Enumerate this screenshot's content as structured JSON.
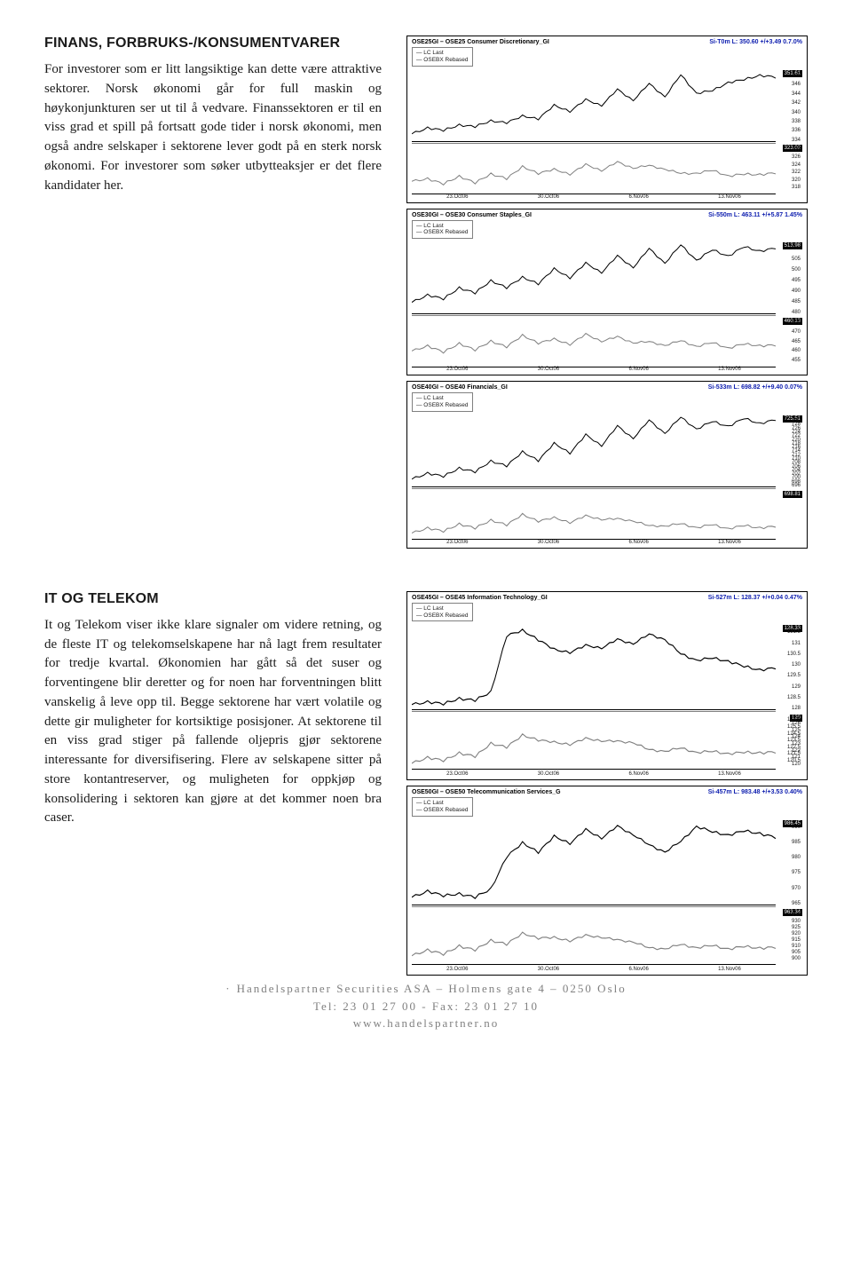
{
  "section1": {
    "heading": "FINANS, FORBRUKS-/KONSUMENTVARER",
    "body": "For investorer som er litt langsiktige kan dette være attraktive sektorer. Norsk økonomi går for full maskin og høykonjunkturen ser ut til å vedvare. Finanssektoren er til en viss grad et spill på fortsatt gode tider i norsk økonomi, men også andre selskaper i sektorene lever godt på en sterk norsk økonomi. For investorer som søker utbytteaksjer er det flere kandidater her."
  },
  "section2": {
    "heading": "IT OG TELEKOM",
    "body": "It og Telekom viser ikke klare signaler om videre retning, og de fleste IT og telekomselskapene har nå lagt frem resultater for tredje kvartal. Økonomien har gått så det suser og forventingene blir deretter og for noen har forventningen blitt vanskelig å leve opp til. Begge sektorene har vært volatile og dette gir muligheter for kortsiktige posisjoner. At sektorene til en viss grad stiger på fallende oljepris gjør sektorene interessante for diversifisering. Flere av selskapene sitter på store kontantreserver, og muligheten for oppkjøp og konsolidering i sektoren kan gjøre at det kommer noen bra caser."
  },
  "charts": {
    "consumer_disc": {
      "title_left": "OSE25GI – OSE25 Consumer Discretionary_GI",
      "title_right": "Si-T0m L: 350.60 +/+3.49 0.7.0%",
      "legend": [
        "LC Last",
        "OSEBX Rebased"
      ],
      "upper_badge": "351.61",
      "line_color_upper": "#000000",
      "y_ticks_upper": [
        "348",
        "346",
        "344",
        "342",
        "340",
        "338",
        "336",
        "334"
      ],
      "lower_badge": "323.02",
      "line_color_lower": "#808080",
      "y_ticks_lower": [
        "328",
        "326",
        "324",
        "322",
        "320",
        "318"
      ],
      "x_ticks": [
        "23.Oct06",
        "30.Oct06",
        "6.Nov06",
        "13.Nov06"
      ],
      "upper_path": [
        0.1,
        0.18,
        0.15,
        0.22,
        0.2,
        0.28,
        0.25,
        0.35,
        0.3,
        0.5,
        0.4,
        0.58,
        0.48,
        0.72,
        0.55,
        0.8,
        0.6,
        0.92,
        0.65,
        0.7,
        0.8,
        0.85,
        0.9,
        0.88
      ],
      "lower_path": [
        0.25,
        0.3,
        0.2,
        0.35,
        0.22,
        0.4,
        0.3,
        0.55,
        0.4,
        0.5,
        0.38,
        0.6,
        0.45,
        0.65,
        0.5,
        0.58,
        0.48,
        0.42,
        0.4,
        0.48,
        0.35,
        0.4,
        0.38,
        0.42
      ]
    },
    "consumer_staples": {
      "title_left": "OSE30GI – OSE30 Consumer Staples_GI",
      "title_right": "Si-550m L: 463.11 +/+5.87 1.45%",
      "legend": [
        "LC Last",
        "OSEBX Rebased"
      ],
      "upper_badge": "513.98",
      "line_color_upper": "#000000",
      "y_ticks_upper": [
        "510",
        "505",
        "500",
        "495",
        "490",
        "485",
        "480"
      ],
      "lower_badge": "460.13",
      "line_color_lower": "#808080",
      "y_ticks_lower": [
        "475",
        "470",
        "465",
        "460",
        "455"
      ],
      "x_ticks": [
        "23.Oct06",
        "30.Oct06",
        "6.Nov06",
        "13.Nov06"
      ],
      "upper_path": [
        0.15,
        0.25,
        0.2,
        0.35,
        0.28,
        0.45,
        0.35,
        0.5,
        0.4,
        0.62,
        0.48,
        0.7,
        0.55,
        0.8,
        0.62,
        0.9,
        0.68,
        0.95,
        0.72,
        0.88,
        0.78,
        0.92,
        0.85,
        0.9
      ],
      "lower_path": [
        0.3,
        0.4,
        0.28,
        0.45,
        0.32,
        0.5,
        0.38,
        0.62,
        0.45,
        0.55,
        0.42,
        0.65,
        0.48,
        0.6,
        0.45,
        0.5,
        0.4,
        0.52,
        0.38,
        0.48,
        0.35,
        0.45,
        0.4,
        0.42
      ]
    },
    "financials": {
      "title_left": "OSE40GI – OSE40 Financials_GI",
      "title_right": "Si-533m L: 698.82 +/+9.40 0.07%",
      "legend": [
        "LC Last",
        "OSEBX Rebased"
      ],
      "upper_badge": "725.51",
      "line_color_upper": "#000000",
      "y_ticks_upper": [
        "730",
        "728",
        "726",
        "724",
        "722",
        "720",
        "718",
        "716",
        "714",
        "712",
        "710",
        "708",
        "706",
        "704",
        "702",
        "700",
        "698",
        "696"
      ],
      "lower_badge": "698.81",
      "line_color_lower": "#808080",
      "y_ticks_lower": [],
      "x_ticks": [
        "23.Oct06",
        "30.Oct06",
        "6.Nov06",
        "13.Nov06"
      ],
      "upper_path": [
        0.1,
        0.18,
        0.14,
        0.25,
        0.2,
        0.35,
        0.28,
        0.48,
        0.35,
        0.6,
        0.45,
        0.72,
        0.55,
        0.84,
        0.65,
        0.92,
        0.72,
        0.96,
        0.78,
        0.9,
        0.82,
        0.94,
        0.86,
        0.92
      ],
      "lower_path": [
        0.12,
        0.22,
        0.16,
        0.3,
        0.22,
        0.38,
        0.28,
        0.5,
        0.35,
        0.44,
        0.32,
        0.48,
        0.38,
        0.42,
        0.35,
        0.28,
        0.25,
        0.32,
        0.22,
        0.3,
        0.2,
        0.28,
        0.22,
        0.26
      ]
    },
    "it": {
      "title_left": "OSE45GI – OSE45 Information Technology_GI",
      "title_right": "Si-527m L: 128.37 +/+0.04 0.47%",
      "legend": [
        "LC Last",
        "OSEBX Rebased"
      ],
      "upper_badge": "128.33",
      "line_color_upper": "#000000",
      "y_ticks_upper": [
        "131.5",
        "131",
        "130.5",
        "130",
        "129.5",
        "129",
        "128.5",
        "128"
      ],
      "mid_badge": "127.45",
      "lower_badge": "120",
      "line_color_lower": "#808080",
      "y_ticks_lower": [
        "126.5",
        "126",
        "125.5",
        "125",
        "124.5",
        "124",
        "123.5",
        "123",
        "122.5",
        "122",
        "121.5",
        "121",
        "120.5",
        "120"
      ],
      "x_ticks": [
        "23.Oct06",
        "30.Oct06",
        "6.Nov06",
        "13.Nov06"
      ],
      "upper_path": [
        0.05,
        0.08,
        0.06,
        0.12,
        0.1,
        0.2,
        0.85,
        0.92,
        0.8,
        0.7,
        0.65,
        0.75,
        0.7,
        0.82,
        0.75,
        0.88,
        0.8,
        0.65,
        0.56,
        0.6,
        0.55,
        0.5,
        0.45,
        0.48
      ],
      "lower_path": [
        0.1,
        0.2,
        0.15,
        0.28,
        0.22,
        0.45,
        0.38,
        0.6,
        0.5,
        0.48,
        0.42,
        0.55,
        0.48,
        0.5,
        0.45,
        0.35,
        0.3,
        0.38,
        0.28,
        0.32,
        0.26,
        0.3,
        0.28,
        0.3
      ]
    },
    "telecom": {
      "title_left": "OSE50GI – OSE50 Telecommunication Services_G",
      "title_right": "Si-457m L: 983.48 +/+3.53 0.40%",
      "legend": [
        "LC Last",
        "OSEBX Rebased"
      ],
      "upper_badge": "986.45",
      "line_color_upper": "#000000",
      "y_ticks_upper": [
        "990",
        "985",
        "980",
        "975",
        "970",
        "965"
      ],
      "lower_badge": "963.34",
      "line_color_lower": "#808080",
      "y_ticks_lower": [
        "935",
        "930",
        "925",
        "920",
        "915",
        "910",
        "905",
        "900"
      ],
      "x_ticks": [
        "23.Oct06",
        "30.Oct06",
        "6.Nov06",
        "13.Nov06"
      ],
      "upper_path": [
        0.08,
        0.15,
        0.1,
        0.12,
        0.08,
        0.18,
        0.55,
        0.72,
        0.6,
        0.8,
        0.7,
        0.88,
        0.76,
        0.92,
        0.8,
        0.7,
        0.6,
        0.74,
        0.9,
        0.85,
        0.8,
        0.86,
        0.82,
        0.78
      ],
      "lower_path": [
        0.15,
        0.25,
        0.18,
        0.32,
        0.25,
        0.42,
        0.35,
        0.55,
        0.45,
        0.48,
        0.4,
        0.52,
        0.46,
        0.44,
        0.38,
        0.3,
        0.26,
        0.36,
        0.28,
        0.34,
        0.26,
        0.32,
        0.28,
        0.3
      ]
    }
  },
  "footer": {
    "line1_bullet": "·",
    "line1": "Handelspartner Securities ASA – Holmens gate 4 – 0250 Oslo",
    "line2": "Tel: 23 01 27 00 - Fax: 23 01 27 10",
    "line3": "www.handelspartner.no"
  }
}
